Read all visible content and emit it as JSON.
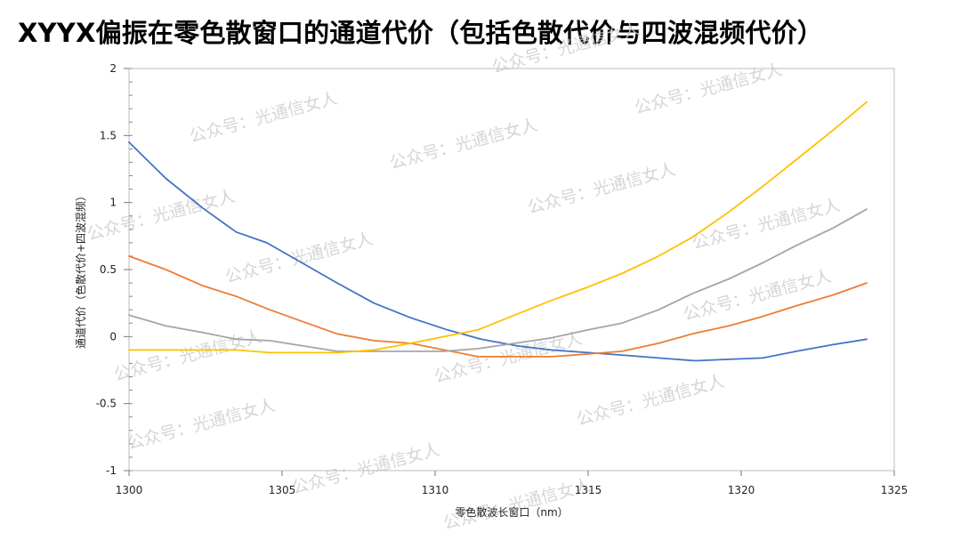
{
  "page": {
    "title": "XYYX偏振在零色散窗口的通道代价（包括色散代价与四波混频代价）",
    "watermark": "公众号：光通信女人"
  },
  "chart_data": {
    "type": "line",
    "title": "XYYX偏振在零色散窗口的通道代价（包括色散代价与四波混频代价）",
    "xlabel": "零色散波长窗口（nm）",
    "ylabel": "通道代价（色散代价+四波混频）",
    "xlim": [
      1300,
      1325
    ],
    "ylim": [
      -1,
      2
    ],
    "xticks": [
      1300,
      1305,
      1310,
      1315,
      1320,
      1325
    ],
    "yticks": [
      -1,
      -0.5,
      0,
      0.5,
      1,
      1.5,
      2
    ],
    "grid": false,
    "legend": "none",
    "series": [
      {
        "color": "#4472c4",
        "points": [
          [
            1300,
            1.45
          ],
          [
            1301.2,
            1.18
          ],
          [
            1302.4,
            0.96
          ],
          [
            1303.5,
            0.78
          ],
          [
            1304.5,
            0.7
          ],
          [
            1305.5,
            0.57
          ],
          [
            1306.8,
            0.4
          ],
          [
            1308,
            0.25
          ],
          [
            1309.2,
            0.14
          ],
          [
            1310.4,
            0.05
          ],
          [
            1311.5,
            -0.02
          ],
          [
            1312.7,
            -0.07
          ],
          [
            1313.8,
            -0.1
          ],
          [
            1315,
            -0.12
          ],
          [
            1316.2,
            -0.14
          ],
          [
            1317.3,
            -0.16
          ],
          [
            1318.5,
            -0.18
          ],
          [
            1319.6,
            -0.17
          ],
          [
            1320.7,
            -0.16
          ],
          [
            1321.8,
            -0.11
          ],
          [
            1323,
            -0.06
          ],
          [
            1324.1,
            -0.02
          ]
        ]
      },
      {
        "color": "#ed7d31",
        "points": [
          [
            1300,
            0.6
          ],
          [
            1301.2,
            0.5
          ],
          [
            1302.4,
            0.38
          ],
          [
            1303.5,
            0.3
          ],
          [
            1304.6,
            0.2
          ],
          [
            1305.7,
            0.11
          ],
          [
            1306.8,
            0.02
          ],
          [
            1308,
            -0.03
          ],
          [
            1309.2,
            -0.05
          ],
          [
            1310.3,
            -0.1
          ],
          [
            1311.4,
            -0.15
          ],
          [
            1312.6,
            -0.15
          ],
          [
            1313.8,
            -0.15
          ],
          [
            1315,
            -0.13
          ],
          [
            1316.1,
            -0.11
          ],
          [
            1317.3,
            -0.05
          ],
          [
            1318.4,
            0.02
          ],
          [
            1319.6,
            0.08
          ],
          [
            1320.7,
            0.15
          ],
          [
            1321.8,
            0.23
          ],
          [
            1323,
            0.31
          ],
          [
            1324.1,
            0.4
          ]
        ]
      },
      {
        "color": "#a5a5a5",
        "points": [
          [
            1300,
            0.16
          ],
          [
            1301.2,
            0.08
          ],
          [
            1302.4,
            0.03
          ],
          [
            1303.5,
            -0.02
          ],
          [
            1304.6,
            -0.03
          ],
          [
            1305.7,
            -0.07
          ],
          [
            1306.8,
            -0.11
          ],
          [
            1308,
            -0.11
          ],
          [
            1309.2,
            -0.11
          ],
          [
            1310.3,
            -0.11
          ],
          [
            1311.4,
            -0.09
          ],
          [
            1312.6,
            -0.05
          ],
          [
            1313.8,
            -0.01
          ],
          [
            1315,
            0.05
          ],
          [
            1316.1,
            0.1
          ],
          [
            1317.3,
            0.2
          ],
          [
            1318.4,
            0.32
          ],
          [
            1319.6,
            0.43
          ],
          [
            1320.7,
            0.55
          ],
          [
            1321.8,
            0.68
          ],
          [
            1323,
            0.81
          ],
          [
            1324.1,
            0.95
          ]
        ]
      },
      {
        "color": "#ffc000",
        "points": [
          [
            1300,
            -0.1
          ],
          [
            1301.2,
            -0.1
          ],
          [
            1302.4,
            -0.1
          ],
          [
            1303.5,
            -0.1
          ],
          [
            1304.6,
            -0.12
          ],
          [
            1305.7,
            -0.12
          ],
          [
            1306.8,
            -0.12
          ],
          [
            1308,
            -0.1
          ],
          [
            1309.2,
            -0.05
          ],
          [
            1310.3,
            0.0
          ],
          [
            1311.4,
            0.05
          ],
          [
            1312.6,
            0.16
          ],
          [
            1313.8,
            0.27
          ],
          [
            1315,
            0.37
          ],
          [
            1316.1,
            0.47
          ],
          [
            1317.3,
            0.6
          ],
          [
            1318.4,
            0.74
          ],
          [
            1319.6,
            0.93
          ],
          [
            1320.7,
            1.12
          ],
          [
            1321.8,
            1.32
          ],
          [
            1323,
            1.54
          ],
          [
            1324.1,
            1.75
          ]
        ]
      }
    ]
  }
}
